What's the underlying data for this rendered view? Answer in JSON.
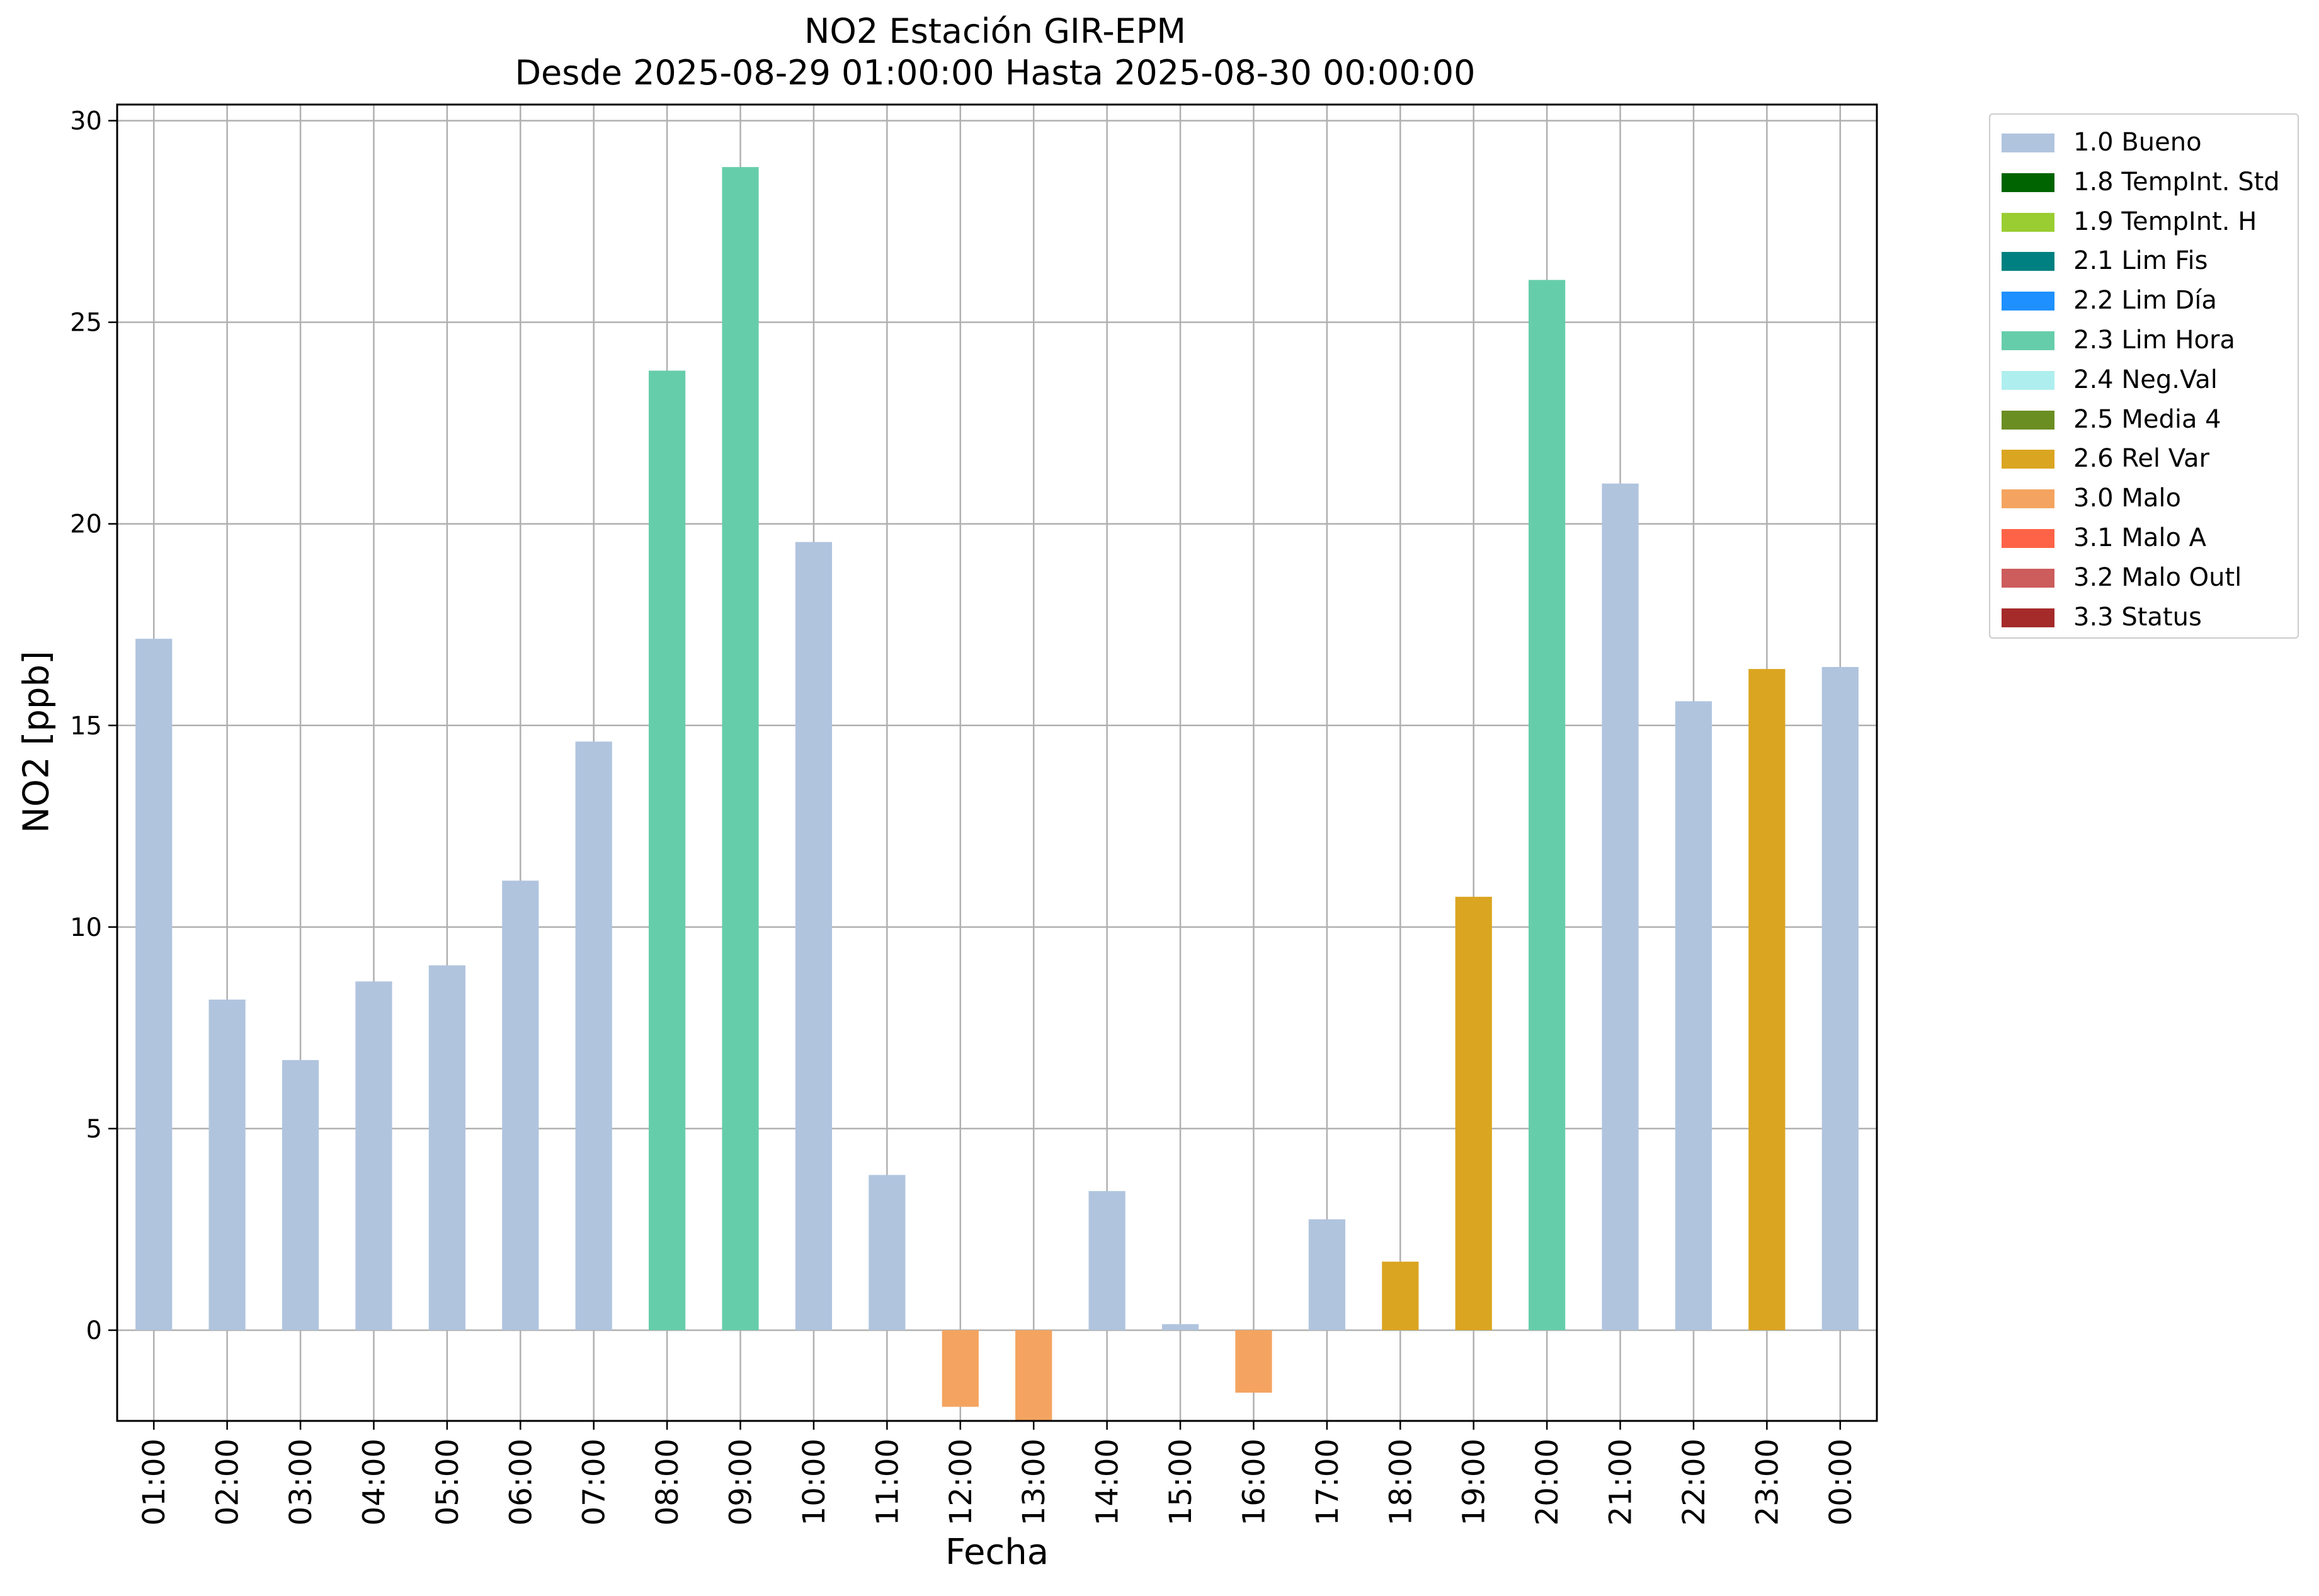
{
  "chart_data": {
    "type": "bar",
    "title": "NO2 Estación GIR-EPM",
    "subtitle": "Desde 2025-08-29 01:00:00 Hasta 2025-08-30 00:00:00",
    "xlabel": "Fecha",
    "ylabel": "NO2 [ppb]",
    "ylim": [
      -2.25,
      30.4
    ],
    "yticks": [
      0,
      5,
      10,
      15,
      20,
      25,
      30
    ],
    "grid": true,
    "legend_position": "outside-top-right",
    "categories": [
      "01:00",
      "02:00",
      "03:00",
      "04:00",
      "05:00",
      "06:00",
      "07:00",
      "08:00",
      "09:00",
      "10:00",
      "11:00",
      "12:00",
      "13:00",
      "14:00",
      "15:00",
      "16:00",
      "17:00",
      "18:00",
      "19:00",
      "20:00",
      "21:00",
      "22:00",
      "23:00",
      "00:00"
    ],
    "values": [
      17.15,
      8.2,
      6.7,
      8.65,
      9.05,
      11.15,
      14.6,
      23.8,
      28.85,
      19.55,
      3.85,
      -1.9,
      -2.25,
      3.45,
      0.15,
      -1.55,
      2.75,
      1.7,
      10.75,
      26.05,
      21.0,
      15.6,
      16.4,
      16.45
    ],
    "flags": [
      "1.0 Bueno",
      "1.0 Bueno",
      "1.0 Bueno",
      "1.0 Bueno",
      "1.0 Bueno",
      "1.0 Bueno",
      "1.0 Bueno",
      "2.3 Lim Hora",
      "2.3 Lim Hora",
      "1.0 Bueno",
      "1.0 Bueno",
      "3.0 Malo",
      "3.0 Malo",
      "1.0 Bueno",
      "1.0 Bueno",
      "3.0 Malo",
      "1.0 Bueno",
      "2.6 Rel Var",
      "2.6 Rel Var",
      "2.3 Lim Hora",
      "1.0 Bueno",
      "1.0 Bueno",
      "2.6 Rel Var",
      "1.0 Bueno"
    ],
    "legend": [
      {
        "label": "1.0 Bueno",
        "color": "#b0c4de"
      },
      {
        "label": "1.8 TempInt. Std",
        "color": "#006400"
      },
      {
        "label": "1.9 TempInt. H",
        "color": "#9acd32"
      },
      {
        "label": "2.1 Lim Fis",
        "color": "#008080"
      },
      {
        "label": "2.2 Lim Día",
        "color": "#1e90ff"
      },
      {
        "label": "2.3 Lim Hora",
        "color": "#66cdaa"
      },
      {
        "label": "2.4 Neg.Val",
        "color": "#afeeee"
      },
      {
        "label": "2.5 Media 4",
        "color": "#6b8e23"
      },
      {
        "label": "2.6 Rel Var",
        "color": "#daa520"
      },
      {
        "label": "3.0 Malo",
        "color": "#f4a460"
      },
      {
        "label": "3.1 Malo A",
        "color": "#ff6347"
      },
      {
        "label": "3.2 Malo Outl",
        "color": "#cd5c5c"
      },
      {
        "label": "3.3 Status",
        "color": "#a52a2a"
      }
    ]
  }
}
